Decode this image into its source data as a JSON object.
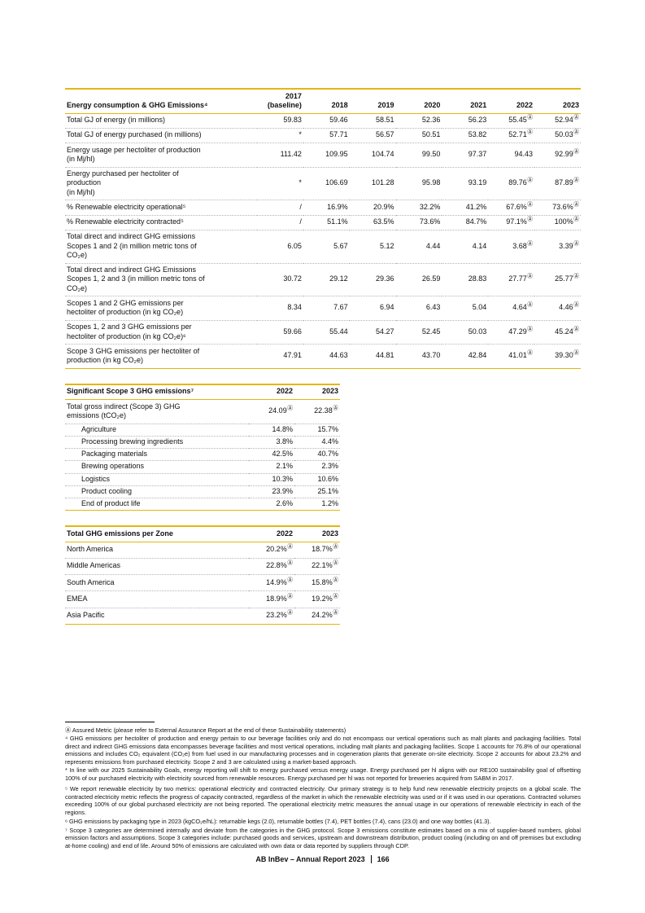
{
  "colors": {
    "accent_gold": "#E5B611",
    "text": "#111111",
    "dotted_divider": "#b5b5b5"
  },
  "tables": [
    {
      "title": "Energy consumption & GHG Emissions⁴",
      "columns": [
        "2017\n(baseline)",
        "2018",
        "2019",
        "2020",
        "2021",
        "2022",
        "2023"
      ],
      "rows": [
        {
          "label": "Total GJ of energy (in millions)",
          "values": [
            "59.83",
            "59.46",
            "58.51",
            "52.36",
            "56.23",
            "55.45Ⓐ",
            "52.94Ⓐ"
          ]
        },
        {
          "label": "Total GJ of energy purchased (in millions)",
          "values": [
            "*",
            "57.71",
            "56.57",
            "50.51",
            "53.82",
            "52.71Ⓐ",
            "50.03Ⓐ"
          ]
        },
        {
          "label": "Energy usage per hectoliter of production\n(in Mj/hl)",
          "values": [
            "111.42",
            "109.95",
            "104.74",
            "99.50",
            "97.37",
            "94.43",
            "92.99Ⓐ"
          ]
        },
        {
          "label": "Energy purchased per hectoliter of\nproduction\n(in Mj/hl)",
          "values": [
            "*",
            "106.69",
            "101.28",
            "95.98",
            "93.19",
            "89.76Ⓐ",
            "87.89Ⓐ"
          ]
        },
        {
          "label": "% Renewable electricity operational⁵",
          "values": [
            "/",
            "16.9%",
            "20.9%",
            "32.2%",
            "41.2%",
            "67.6%Ⓐ",
            "73.6%Ⓐ"
          ]
        },
        {
          "label": "% Renewable electricity contracted⁵",
          "values": [
            "/",
            "51.1%",
            "63.5%",
            "73.6%",
            "84.7%",
            "97.1%Ⓐ",
            "100%Ⓐ"
          ]
        },
        {
          "label": "Total direct and indirect GHG emissions\nScopes 1 and 2 (in million metric tons of\nCO₂e)",
          "values": [
            "6.05",
            "5.67",
            "5.12",
            "4.44",
            "4.14",
            "3.68Ⓐ",
            "3.39Ⓐ"
          ]
        },
        {
          "label": "Total direct and indirect GHG Emissions\nScopes 1, 2 and 3 (in million metric tons of\nCO₂e)",
          "values": [
            "30.72",
            "29.12",
            "29.36",
            "26.59",
            "28.83",
            "27.77Ⓐ",
            "25.77Ⓐ"
          ]
        },
        {
          "label": "Scopes 1 and 2 GHG emissions per\nhectoliter of production (in kg CO₂e)",
          "values": [
            "8.34",
            "7.67",
            "6.94",
            "6.43",
            "5.04",
            "4.64Ⓐ",
            "4.46Ⓐ"
          ]
        },
        {
          "label": "Scopes 1, 2 and 3 GHG emissions per\nhectoliter of production (in kg CO₂e)⁶",
          "values": [
            "59.66",
            "55.44",
            "54.27",
            "52.45",
            "50.03",
            "47.29Ⓐ",
            "45.24Ⓐ"
          ]
        },
        {
          "label": "Scope 3 GHG emissions per hectoliter of\nproduction (in kg CO₂e)",
          "values": [
            "47.91",
            "44.63",
            "44.81",
            "43.70",
            "42.84",
            "41.01Ⓐ",
            "39.30Ⓐ"
          ]
        }
      ]
    },
    {
      "title": "Significant Scope 3 GHG emissions⁷",
      "columns": [
        "2022",
        "2023"
      ],
      "rows": [
        {
          "label": "Total gross indirect (Scope 3) GHG\nemissions (tCO₂e)",
          "values": [
            "24.09Ⓐ",
            "22.38Ⓐ"
          ]
        },
        {
          "label": "Agriculture",
          "indent": true,
          "values": [
            "14.8%",
            "15.7%"
          ]
        },
        {
          "label": "Processing brewing ingredients",
          "indent": true,
          "values": [
            "3.8%",
            "4.4%"
          ]
        },
        {
          "label": "Packaging materials",
          "indent": true,
          "values": [
            "42.5%",
            "40.7%"
          ]
        },
        {
          "label": "Brewing operations",
          "indent": true,
          "values": [
            "2.1%",
            "2.3%"
          ]
        },
        {
          "label": "Logistics",
          "indent": true,
          "values": [
            "10.3%",
            "10.6%"
          ]
        },
        {
          "label": "Product cooling",
          "indent": true,
          "values": [
            "23.9%",
            "25.1%"
          ]
        },
        {
          "label": "End of product life",
          "indent": true,
          "values": [
            "2.6%",
            "1.2%"
          ]
        }
      ]
    },
    {
      "title": "Total GHG emissions per Zone",
      "columns": [
        "2022",
        "2023"
      ],
      "rows": [
        {
          "label": "North America",
          "values": [
            "20.2%Ⓐ",
            "18.7%Ⓐ"
          ]
        },
        {
          "label": "Middle Americas",
          "values": [
            "22.8%Ⓐ",
            "22.1%Ⓐ"
          ]
        },
        {
          "label": "South America",
          "values": [
            "14.9%Ⓐ",
            "15.8%Ⓐ"
          ]
        },
        {
          "label": "EMEA",
          "values": [
            "18.9%Ⓐ",
            "19.2%Ⓐ"
          ]
        },
        {
          "label": "Asia Pacific",
          "values": [
            "23.2%Ⓐ",
            "24.2%Ⓐ"
          ]
        }
      ]
    }
  ],
  "footnotes": [
    "Ⓐ Assured Metric (please refer to External Assurance Report at the end of these Sustainability statements)",
    "⁴ GHG emissions per hectoliter of production and energy pertain to our beverage facilities only and do not encompass our vertical operations such as malt plants and packaging facilities. Total direct and indirect GHG emissions data encompasses beverage facilities and most vertical operations, including malt plants and packaging facilities. Scope 1 accounts for 76.8% of our operational emissions and includes CO₂ equivalent (CO₂e) from fuel used in our manufacturing processes and in cogeneration plants that generate on-site electricity. Scope 2 accounts for about 23.2% and represents emissions from purchased electricity. Scope 2 and 3 are calculated using a market-based approach.",
    "* In line with our 2025 Sustainability Goals, energy reporting will shift to energy purchased versus energy usage. Energy purchased per hl aligns with our RE100 sustainability goal of offsetting 100% of our purchased electricity with electricity sourced from renewable resources. Energy purchased per hl was not reported for breweries acquired from SABM in 2017.",
    "⁵ We report renewable electricity by two metrics: operational electricity and contracted electricity. Our primary strategy is to help fund new renewable electricity projects on a global scale. The contracted electricity metric reflects the progress of capacity contracted, regardless of the market in which the renewable electricity was used or if it was used in our operations. Contracted volumes exceeding 100% of our global purchased electricity are not being reported. The operational electricity metric measures the annual usage in our operations of renewable electricity in each of the regions.",
    "⁶ GHG emissions by packaging type in 2023 (kgCO₂e/hL): returnable kegs (2.0), returnable bottles (7.4), PET bottles (7.4), cans (23.0) and one way bottles (41.3).",
    "⁷ Scope 3 categories are determined internally and deviate from the categories in the GHG protocol. Scope 3 emissions constitute estimates based on a mix of supplier-based numbers, global emission factors and assumptions. Scope 3 categories include: purchased goods and services, upstream and downstream distribution, product cooling (including on and off premises but excluding at-home cooling) and end of life. Around 50% of emissions are calculated with own data or data reported by suppliers through CDP."
  ],
  "footer": {
    "report_title": "AB InBev – Annual Report 2023",
    "page_number": "166"
  }
}
